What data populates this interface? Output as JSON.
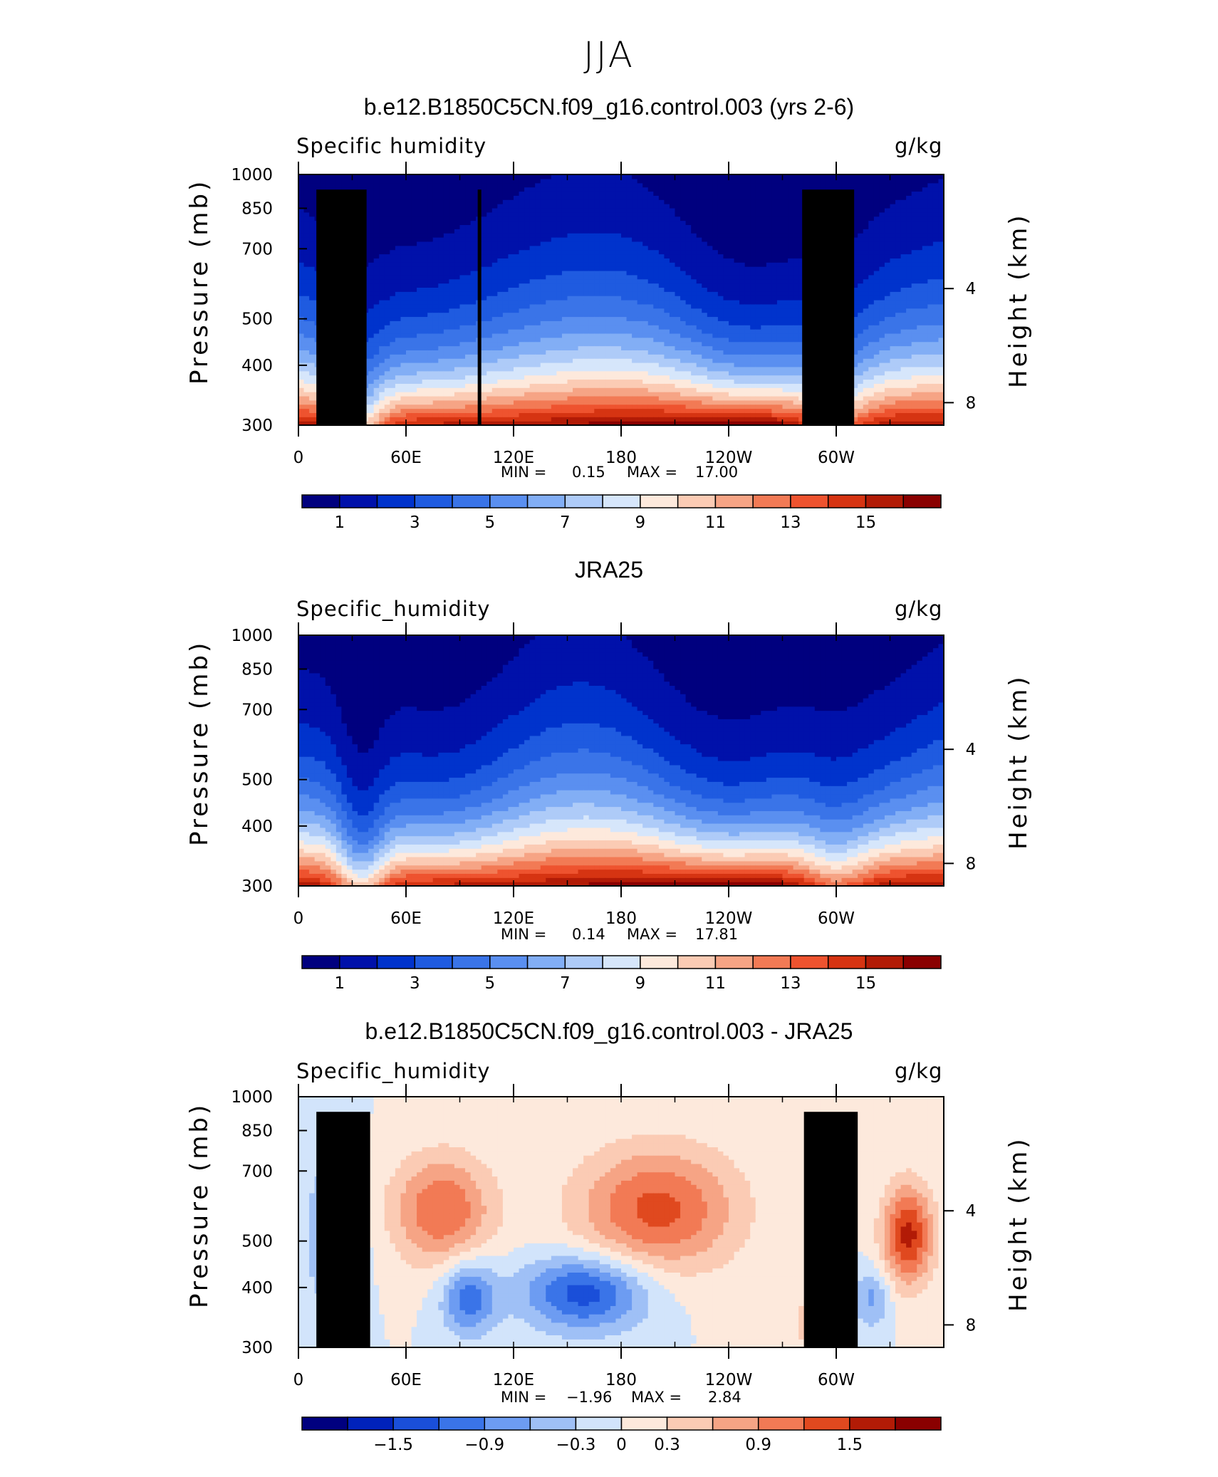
{
  "figure": {
    "title": "JJA"
  },
  "chart_data": [
    {
      "type": "heatmap",
      "title": "b.e12.B1850C5CN.f09_g16.control.003 (yrs 2-6)",
      "variable": "Specific humidity",
      "units": "g/kg",
      "ylabel": "Pressure (mb)",
      "ylabel_right": "Height (km)",
      "y_ticks": [
        "300",
        "400",
        "500",
        "700",
        "850",
        "1000"
      ],
      "y_right_ticks": [
        "8",
        "4"
      ],
      "x_ticks": [
        "0",
        "60E",
        "120E",
        "180",
        "120W",
        "60W"
      ],
      "x_range": [
        0,
        360
      ],
      "y_range": [
        1000,
        300
      ],
      "min": "0.15",
      "max": "17.00",
      "min_label": "MIN =",
      "max_label": "MAX =",
      "colorbar_labels": [
        "1",
        "3",
        "5",
        "7",
        "9",
        "11",
        "13",
        "15"
      ],
      "colorbar_levels": [
        0,
        1,
        2,
        3,
        4,
        5,
        6,
        7,
        8,
        9,
        10,
        11,
        12,
        13,
        14,
        15,
        16
      ],
      "colorbar_colors": [
        "#00007f",
        "#0011aa",
        "#0033cc",
        "#1f5be0",
        "#3a74e8",
        "#5a8ff0",
        "#82aef5",
        "#aecbf8",
        "#d6e6fb",
        "#fde9dc",
        "#fbcbb4",
        "#f6a485",
        "#f27a55",
        "#ee532f",
        "#d63412",
        "#b21b06",
        "#8a0000"
      ],
      "surface_mask": true
    },
    {
      "type": "heatmap",
      "title": "JRA25",
      "variable": "Specific_humidity",
      "units": "g/kg",
      "ylabel": "Pressure (mb)",
      "ylabel_right": "Height (km)",
      "y_ticks": [
        "300",
        "400",
        "500",
        "700",
        "850",
        "1000"
      ],
      "y_right_ticks": [
        "8",
        "4"
      ],
      "x_ticks": [
        "0",
        "60E",
        "120E",
        "180",
        "120W",
        "60W"
      ],
      "x_range": [
        0,
        360
      ],
      "y_range": [
        1000,
        300
      ],
      "min": "0.14",
      "max": "17.81",
      "min_label": "MIN =",
      "max_label": "MAX =",
      "colorbar_labels": [
        "1",
        "3",
        "5",
        "7",
        "9",
        "11",
        "13",
        "15"
      ],
      "colorbar_levels": [
        0,
        1,
        2,
        3,
        4,
        5,
        6,
        7,
        8,
        9,
        10,
        11,
        12,
        13,
        14,
        15,
        16
      ],
      "colorbar_colors": [
        "#00007f",
        "#0011aa",
        "#0033cc",
        "#1f5be0",
        "#3a74e8",
        "#5a8ff0",
        "#82aef5",
        "#aecbf8",
        "#d6e6fb",
        "#fde9dc",
        "#fbcbb4",
        "#f6a485",
        "#f27a55",
        "#ee532f",
        "#d63412",
        "#b21b06",
        "#8a0000"
      ],
      "surface_mask": false
    },
    {
      "type": "heatmap",
      "title": "b.e12.B1850C5CN.f09_g16.control.003 - JRA25",
      "variable": "Specific_humidity",
      "units": "g/kg",
      "ylabel": "Pressure (mb)",
      "ylabel_right": "Height (km)",
      "y_ticks": [
        "300",
        "400",
        "500",
        "700",
        "850",
        "1000"
      ],
      "y_right_ticks": [
        "8",
        "4"
      ],
      "x_ticks": [
        "0",
        "60E",
        "120E",
        "180",
        "120W",
        "60W"
      ],
      "x_range": [
        0,
        360
      ],
      "y_range": [
        1000,
        300
      ],
      "min": "−1.96",
      "max": "2.84",
      "min_label": "MIN =",
      "max_label": "MAX =",
      "colorbar_labels": [
        "−1.5",
        "−0.9",
        "−0.3",
        "0",
        "0.3",
        "0.9",
        "1.5"
      ],
      "colorbar_colors": [
        "#00007f",
        "#0022bb",
        "#1a4fd9",
        "#3a74e8",
        "#6d9cf2",
        "#9fc0f6",
        "#d2e4fb",
        "#fde9dc",
        "#fbcbb4",
        "#f6a485",
        "#f27a55",
        "#e0491f",
        "#b21b06",
        "#8a0000"
      ],
      "surface_mask": true
    }
  ]
}
